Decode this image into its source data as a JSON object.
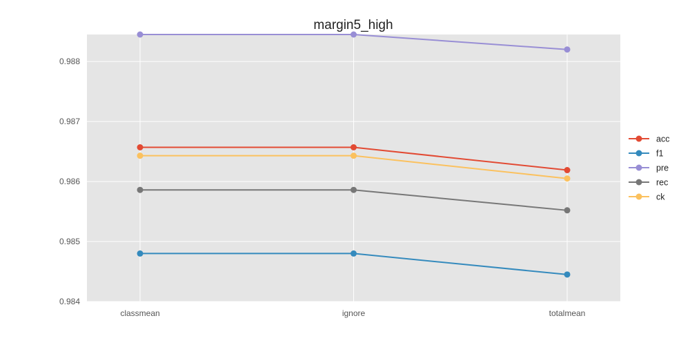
{
  "chart_data": {
    "type": "line",
    "title": "margin5_high",
    "xlabel": "",
    "ylabel": "",
    "categories": [
      "classmean",
      "ignore",
      "totalmean"
    ],
    "ylim": [
      0.984,
      0.98845
    ],
    "yticks": [
      0.984,
      0.985,
      0.986,
      0.987,
      0.988
    ],
    "ytick_labels": [
      "0.984",
      "0.985",
      "0.986",
      "0.987",
      "0.988"
    ],
    "grid": true,
    "legend_position": "right",
    "style": {
      "plot_background": "#e5e5e5",
      "grid_color": "#ffffff"
    },
    "series": [
      {
        "name": "acc",
        "color": "#e24a33",
        "values": [
          0.98657,
          0.98657,
          0.98619
        ]
      },
      {
        "name": "f1",
        "color": "#348abd",
        "values": [
          0.9848,
          0.9848,
          0.98445
        ]
      },
      {
        "name": "pre",
        "color": "#988ed5",
        "values": [
          0.98845,
          0.98845,
          0.9882
        ]
      },
      {
        "name": "rec",
        "color": "#777777",
        "values": [
          0.98586,
          0.98586,
          0.98552
        ]
      },
      {
        "name": "ck",
        "color": "#fbc15e",
        "values": [
          0.98643,
          0.98643,
          0.98605
        ]
      }
    ]
  }
}
